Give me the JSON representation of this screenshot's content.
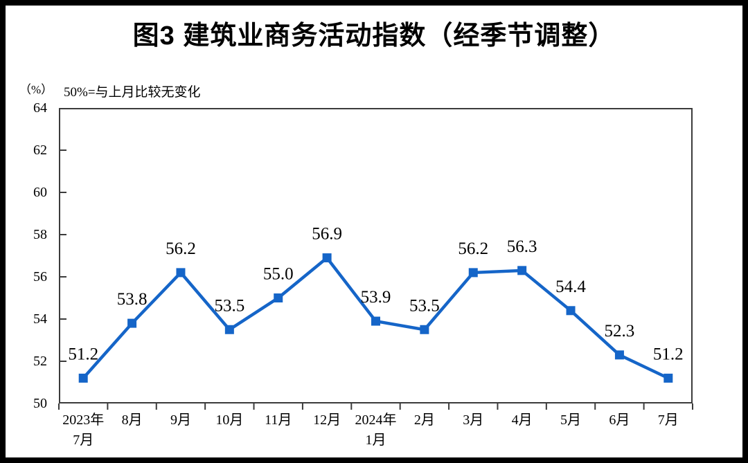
{
  "page": {
    "frame_color": "#000000",
    "background": "#ffffff"
  },
  "header": {
    "title": "图3  建筑业商务活动指数（经季节调整）"
  },
  "subtitle": {
    "unit_label": "（%）",
    "note": "50%=与上月比较无变化"
  },
  "chart_data": {
    "type": "line",
    "title": "图3 建筑业商务活动指数（经季节调整）",
    "categories": [
      [
        "2023年",
        "7月"
      ],
      [
        "8月"
      ],
      [
        "9月"
      ],
      [
        "10月"
      ],
      [
        "11月"
      ],
      [
        "12月"
      ],
      [
        "2024年",
        "1月"
      ],
      [
        "2月"
      ],
      [
        "3月"
      ],
      [
        "4月"
      ],
      [
        "5月"
      ],
      [
        "6月"
      ],
      [
        "7月"
      ]
    ],
    "series": [
      {
        "name": "建筑业商务活动指数",
        "values": [
          51.2,
          53.8,
          56.2,
          53.5,
          55.0,
          56.9,
          53.9,
          53.5,
          56.2,
          56.3,
          54.4,
          52.3,
          51.2
        ]
      }
    ],
    "data_labels": [
      "51.2",
      "53.8",
      "56.2",
      "53.5",
      "55.0",
      "56.9",
      "53.9",
      "53.5",
      "56.2",
      "56.3",
      "54.4",
      "52.3",
      "51.2"
    ],
    "ylabel": "（%）",
    "ylim": [
      50,
      64
    ],
    "ytick_step": 2,
    "yticks": [
      64,
      62,
      60,
      58,
      56,
      54,
      52,
      50
    ],
    "grid": "off",
    "legend": "none",
    "colors": {
      "line": "#1565C8",
      "marker": "#1565C8",
      "axis": "#3b3b3b",
      "text": "#000000"
    }
  }
}
